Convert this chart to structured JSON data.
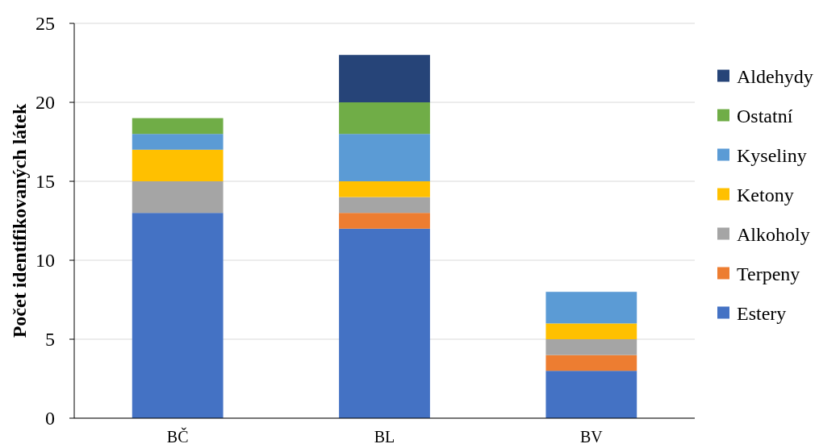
{
  "chart_data": {
    "type": "bar",
    "stacked": true,
    "ylabel": "Počet identifikovaných látek",
    "categories": [
      "BČ",
      "BL",
      "BV"
    ],
    "series": [
      {
        "name": "Estery",
        "color": "#4472c4",
        "values": [
          13,
          12,
          3
        ]
      },
      {
        "name": "Terpeny",
        "color": "#ed7d31",
        "values": [
          0,
          1,
          1
        ]
      },
      {
        "name": "Alkoholy",
        "color": "#a5a5a5",
        "values": [
          2,
          1,
          1
        ]
      },
      {
        "name": "Ketony",
        "color": "#ffc000",
        "values": [
          2,
          1,
          1
        ]
      },
      {
        "name": "Kyseliny",
        "color": "#5b9bd5",
        "values": [
          1,
          3,
          2
        ]
      },
      {
        "name": "Ostatní",
        "color": "#70ad47",
        "values": [
          1,
          2,
          0
        ]
      },
      {
        "name": "Aldehydy",
        "color": "#264478",
        "values": [
          0,
          3,
          0
        ]
      }
    ],
    "ylim": [
      0,
      25
    ],
    "yticks": [
      0,
      5,
      10,
      15,
      20,
      25
    ],
    "grid": "y",
    "legend": "right"
  }
}
